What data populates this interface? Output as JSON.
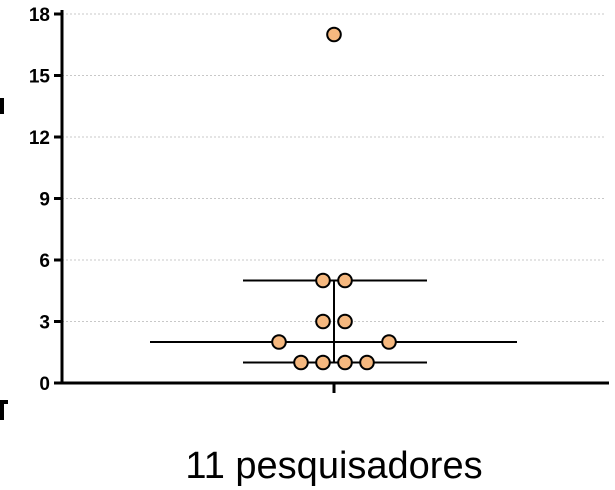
{
  "chart_data": {
    "type": "scatter",
    "categories": [
      "11 pesquisadores"
    ],
    "ylim": [
      0,
      18
    ],
    "yticks": [
      "0",
      "3",
      "6",
      "9",
      "12",
      "15",
      "18"
    ],
    "grid": true,
    "series": [
      {
        "category": "11 pesquisadores",
        "values": [
          17,
          5,
          5,
          3,
          3,
          2,
          2,
          1,
          1,
          1,
          1
        ],
        "color": "#f5b87f"
      }
    ],
    "summary": {
      "median": 2,
      "q1": 1,
      "q3": 5
    }
  }
}
